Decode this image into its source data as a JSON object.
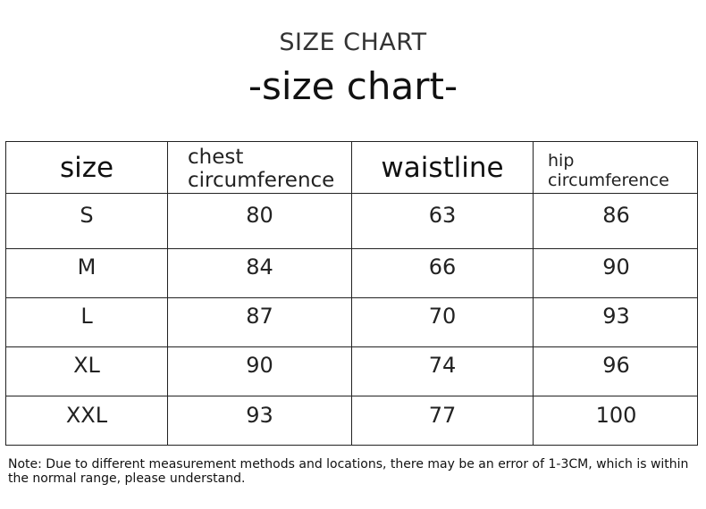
{
  "title": "SIZE CHART",
  "subtitle": "-size chart-",
  "table": {
    "headers": {
      "size": "size",
      "chest_1": "chest",
      "chest_2": "circumference",
      "waist": "waistline",
      "hip_1": "hip",
      "hip_2": "circumference"
    },
    "rows": [
      {
        "size": "S",
        "chest": "80",
        "waist": "63",
        "hip": "86"
      },
      {
        "size": "M",
        "chest": "84",
        "waist": "66",
        "hip": "90"
      },
      {
        "size": "L",
        "chest": "87",
        "waist": "70",
        "hip": "93"
      },
      {
        "size": "XL",
        "chest": "90",
        "waist": "74",
        "hip": "96"
      },
      {
        "size": "XXL",
        "chest": "93",
        "waist": "77",
        "hip": "100"
      }
    ]
  },
  "note": "Note: Due to different measurement methods and locations, there may be an error of 1-3CM, which is within the normal range, please understand."
}
